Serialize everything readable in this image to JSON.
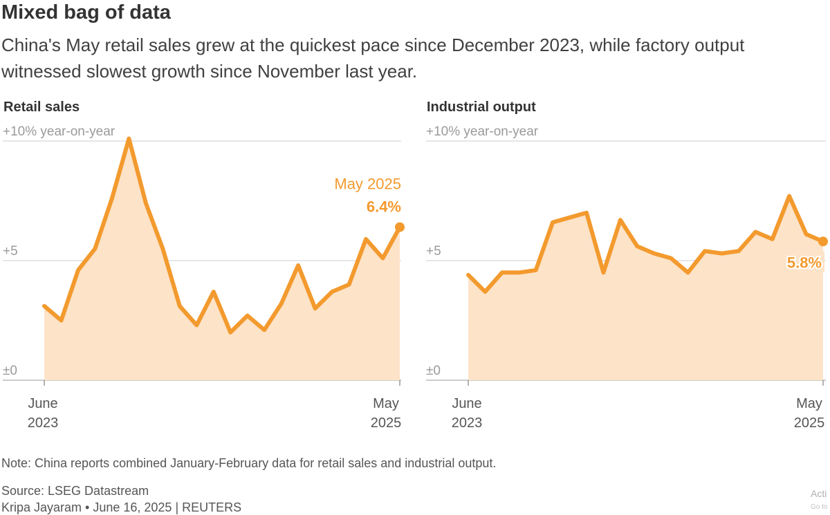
{
  "header": {
    "title": "Mixed bag of data",
    "subtitle": "China's May retail sales grew at the quickest pace since December 2023, while factory output witnessed slowest growth since November last year."
  },
  "colors": {
    "line": "#f39a2e",
    "fill": "#fde3c8",
    "grid": "#cccccc",
    "axis_label": "#9a9a9a",
    "callout": "#f39a2e"
  },
  "chart_data": [
    {
      "type": "area",
      "title": "Retail sales",
      "unit_label": "+10% year-on-year",
      "y_ticks": [
        {
          "value": 0,
          "label": "±0"
        },
        {
          "value": 5,
          "label": "+5"
        },
        {
          "value": 10,
          "label": "+10% year-on-year"
        }
      ],
      "ylim": [
        0,
        10
      ],
      "x_labels": [
        {
          "month": "June",
          "year": "2023"
        },
        {
          "month": "May",
          "year": "2025"
        }
      ],
      "series": [
        {
          "name": "Retail sales",
          "x": [
            "Jun 2023",
            "Jul 2023",
            "Aug 2023",
            "Sep 2023",
            "Oct 2023",
            "Nov 2023",
            "Dec 2023",
            "Jan-Feb 2024",
            "Mar 2024",
            "Apr 2024",
            "May 2024",
            "Jun 2024",
            "Jul 2024",
            "Aug 2024",
            "Sep 2024",
            "Oct 2024",
            "Nov 2024",
            "Dec 2024",
            "Jan-Feb 2025",
            "Mar 2025",
            "Apr 2025",
            "May 2025"
          ],
          "values": [
            3.1,
            2.5,
            4.6,
            5.5,
            7.6,
            10.1,
            7.4,
            5.5,
            3.1,
            2.3,
            3.7,
            2.0,
            2.7,
            2.1,
            3.2,
            4.8,
            3.0,
            3.7,
            4.0,
            5.9,
            5.1,
            6.4
          ]
        }
      ],
      "annotation": {
        "label": "May 2025",
        "value_label": "6.4%"
      }
    },
    {
      "type": "area",
      "title": "Industrial output",
      "unit_label": "+10% year-on-year",
      "y_ticks": [
        {
          "value": 0,
          "label": "±0"
        },
        {
          "value": 5,
          "label": "+5"
        },
        {
          "value": 10,
          "label": "+10% year-on-year"
        }
      ],
      "ylim": [
        0,
        10
      ],
      "x_labels": [
        {
          "month": "June",
          "year": "2023"
        },
        {
          "month": "May",
          "year": "2025"
        }
      ],
      "series": [
        {
          "name": "Industrial output",
          "x": [
            "Jun 2023",
            "Jul 2023",
            "Aug 2023",
            "Sep 2023",
            "Oct 2023",
            "Nov 2023",
            "Dec 2023",
            "Jan-Feb 2024",
            "Mar 2024",
            "Apr 2024",
            "May 2024",
            "Jun 2024",
            "Jul 2024",
            "Aug 2024",
            "Sep 2024",
            "Oct 2024",
            "Nov 2024",
            "Dec 2024",
            "Jan-Feb 2025",
            "Mar 2025",
            "Apr 2025",
            "May 2025"
          ],
          "values": [
            4.4,
            3.7,
            4.5,
            4.5,
            4.6,
            6.6,
            6.8,
            7.0,
            4.5,
            6.7,
            5.6,
            5.3,
            5.1,
            4.5,
            5.4,
            5.3,
            5.4,
            6.2,
            5.9,
            7.7,
            6.1,
            5.8
          ]
        }
      ],
      "annotation": {
        "label": "",
        "value_label": "5.8%"
      }
    }
  ],
  "footer": {
    "note": "Note: China reports combined January-February data for retail sales and industrial output.",
    "source": "Source: LSEG Datastream",
    "byline": "Kripa Jayaram • June 16, 2025 | REUTERS",
    "watermark_1": "Acti",
    "watermark_2": "Go to"
  }
}
